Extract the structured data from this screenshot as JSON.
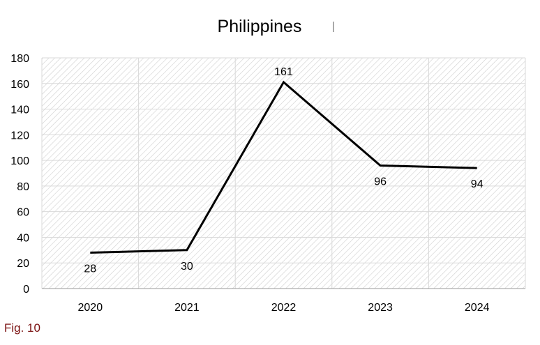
{
  "figure_label": "Fig. 10",
  "chart_data": {
    "type": "line",
    "title": "Philippines",
    "categories": [
      "2020",
      "2021",
      "2022",
      "2023",
      "2024"
    ],
    "values": [
      28,
      30,
      161,
      96,
      94
    ],
    "data_labels": [
      "28",
      "30",
      "161",
      "96",
      "94"
    ],
    "ylim": [
      0,
      180
    ],
    "y_ticks": [
      0,
      20,
      40,
      60,
      80,
      100,
      120,
      140,
      160,
      180
    ],
    "y_tick_labels": [
      "0",
      "20",
      "40",
      "60",
      "80",
      "100",
      "120",
      "140",
      "160",
      "180"
    ],
    "grid": true,
    "line_color": "#000000",
    "plot_pattern": "diagonal hatching"
  }
}
